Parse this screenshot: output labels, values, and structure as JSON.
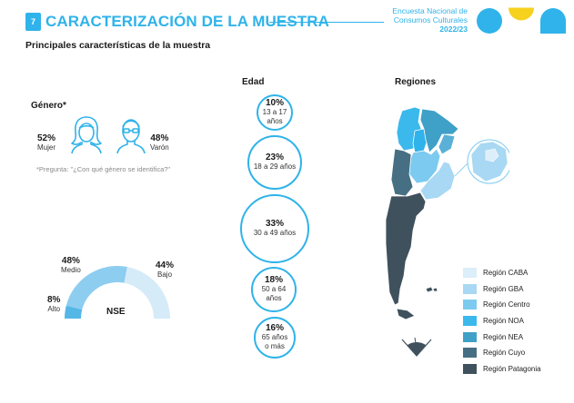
{
  "header": {
    "page_number": "7",
    "title": "CARACTERIZACIÓN DE LA MUESTRA",
    "survey_line1": "Encuesta Nacional de",
    "survey_line2": "Consumos Culturales",
    "survey_year": "2022/23"
  },
  "subtitle": "Principales características de la muestra",
  "genero": {
    "label": "Género*",
    "mujer_pct": "52%",
    "mujer_label": "Mujer",
    "varon_pct": "48%",
    "varon_label": "Varón",
    "note": "*Pregunta: \"¿Con qué género se identifica?\""
  },
  "nse": {
    "label": "NSE",
    "medio_pct": "48%",
    "medio_label": "Medio",
    "bajo_pct": "44%",
    "bajo_label": "Bajo",
    "alto_pct": "8%",
    "alto_label": "Alto",
    "values": {
      "alto": 8,
      "medio": 48,
      "bajo": 44
    },
    "colors": {
      "alto": "#55b7e6",
      "medio": "#8dcdf0",
      "bajo": "#d6ebf8"
    }
  },
  "edad": {
    "label": "Edad",
    "groups": [
      {
        "pct": "10%",
        "range": "13 a 17 años",
        "value": 10
      },
      {
        "pct": "23%",
        "range": "18 a 29 años",
        "value": 23
      },
      {
        "pct": "33%",
        "range": "30 a 49 años",
        "value": 33
      },
      {
        "pct": "18%",
        "range": "50 a 64 años",
        "value": 18
      },
      {
        "pct": "16%",
        "range": "65 años o más",
        "range_line1": "65 años",
        "range_line2": "o más",
        "value": 16
      }
    ]
  },
  "regiones": {
    "label": "Regiones",
    "legend": [
      {
        "name": "Región CABA",
        "color": "#dbeef9"
      },
      {
        "name": "Región GBA",
        "color": "#a8d8f3"
      },
      {
        "name": "Región Centro",
        "color": "#7ccaf0"
      },
      {
        "name": "Región NOA",
        "color": "#3bb8ec"
      },
      {
        "name": "Región NEA",
        "color": "#3fa0c8"
      },
      {
        "name": "Región Cuyo",
        "color": "#466f83"
      },
      {
        "name": "Región Patagonia",
        "color": "#3f515c"
      }
    ]
  },
  "colors": {
    "accent": "#2fb3ea",
    "logo_yellow": "#f6d21f"
  }
}
